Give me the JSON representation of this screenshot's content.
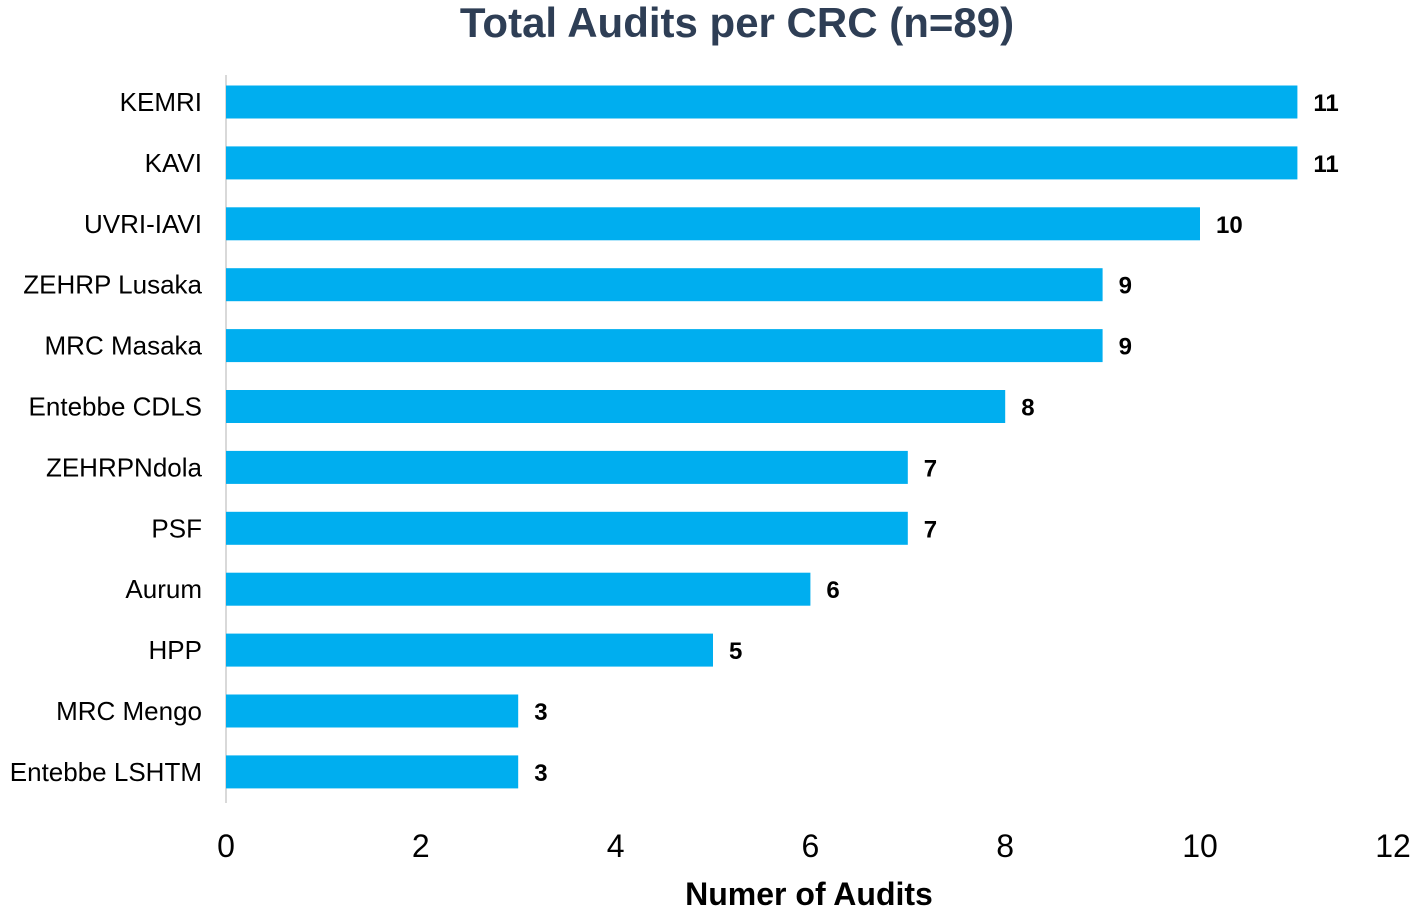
{
  "chart_data": {
    "type": "bar",
    "orientation": "horizontal",
    "title": "Total Audits per CRC (n=89)",
    "xlabel": "Numer of Audits",
    "ylabel": "",
    "categories": [
      "KEMRI",
      "KAVI",
      "UVRI-IAVI",
      "ZEHRP Lusaka",
      "MRC Masaka",
      "Entebbe CDLS",
      "ZEHRPNdola",
      "PSF",
      "Aurum",
      "HPP",
      "MRC Mengo",
      "Entebbe LSHTM"
    ],
    "values": [
      11,
      11,
      10,
      9,
      9,
      8,
      7,
      7,
      6,
      5,
      3,
      3
    ],
    "data_labels": [
      "11",
      "11",
      "10",
      "9",
      "9",
      "8",
      "7",
      "7",
      "6",
      "5",
      "3",
      "3"
    ],
    "xlim": [
      0,
      12
    ],
    "x_ticks": [
      0,
      2,
      4,
      6,
      8,
      10,
      12
    ],
    "x_tick_labels": [
      "0",
      "2",
      "4",
      "6",
      "8",
      "10",
      "12"
    ],
    "grid": false,
    "legend": "none",
    "colors": {
      "bar": "#00AEEF",
      "title": "#2E3E55",
      "axis": "#D9D9D9"
    }
  }
}
